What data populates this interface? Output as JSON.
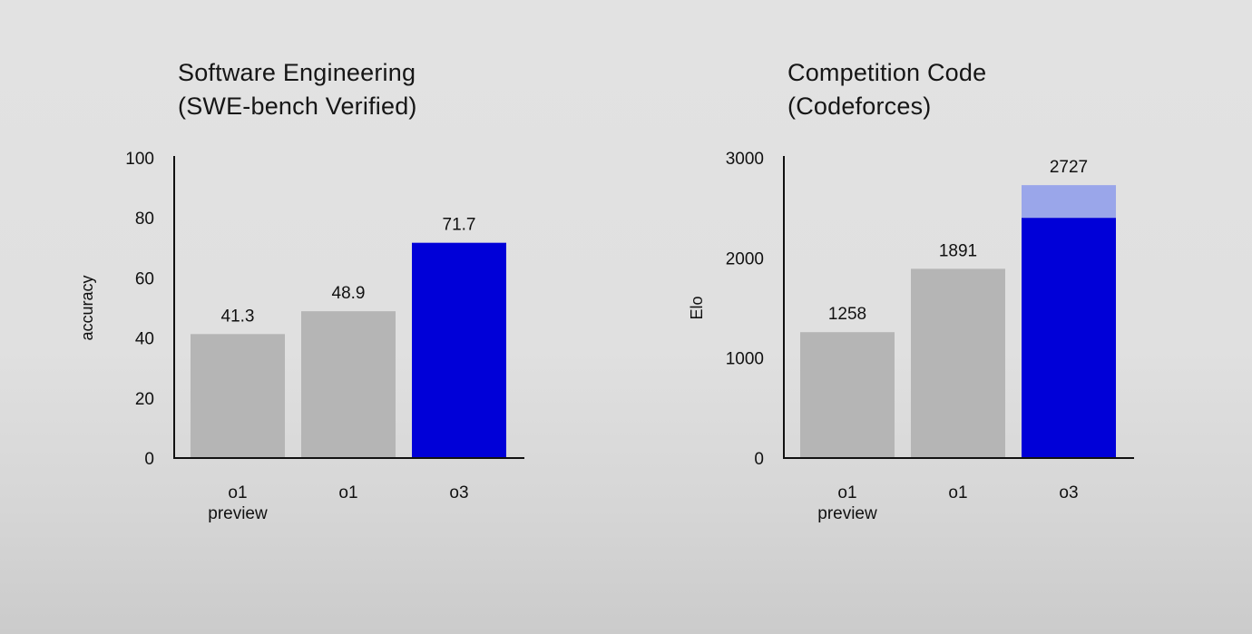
{
  "chart_data": [
    {
      "type": "bar",
      "title": [
        "Software Engineering",
        "(SWE-bench Verified)"
      ],
      "ylabel": "accuracy",
      "xlabel": "",
      "ylim": [
        0,
        100
      ],
      "yticks": [
        0,
        20,
        40,
        60,
        80,
        100
      ],
      "categories": [
        [
          "o1",
          "preview"
        ],
        [
          "o1"
        ],
        [
          "o3"
        ]
      ],
      "values": [
        41.3,
        48.9,
        71.7
      ],
      "value_labels": [
        "41.3",
        "48.9",
        "71.7"
      ],
      "bar_colors": [
        "#b5b5b5",
        "#b5b5b5",
        "#0000d8"
      ],
      "grid": false,
      "legend": "none"
    },
    {
      "type": "bar",
      "title": [
        "Competition Code",
        "(Codeforces)"
      ],
      "ylabel": "Elo",
      "xlabel": "",
      "ylim": [
        0,
        3000
      ],
      "yticks": [
        0,
        1000,
        2000,
        3000
      ],
      "categories": [
        [
          "o1",
          "preview"
        ],
        [
          "o1"
        ],
        [
          "o3"
        ]
      ],
      "values": [
        1258,
        1891,
        2727
      ],
      "value_labels": [
        "1258",
        "1891",
        "2727"
      ],
      "stacked_segments": [
        null,
        null,
        {
          "base_value": 2400,
          "light_color": "#9aa6ea"
        }
      ],
      "bar_colors": [
        "#b5b5b5",
        "#b5b5b5",
        "#0000d8"
      ],
      "grid": false,
      "legend": "none"
    }
  ]
}
